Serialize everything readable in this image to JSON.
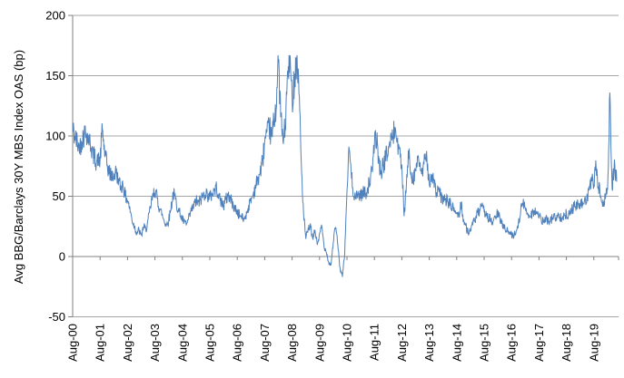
{
  "chart": {
    "y_axis_title": "Avg BBG/Barclays 30Y MBS Index OAS (bp)",
    "line_color": "#4F81BD",
    "gridline_color": "#A6A6A6",
    "axis_color": "#808080",
    "text_color": "#000000",
    "background_color": "#FFFFFF"
  },
  "chart_data": {
    "type": "line",
    "title": "",
    "xlabel": "",
    "ylabel": "Avg BBG/Barclays 30Y MBS Index OAS (bp)",
    "ylim": [
      -50,
      200
    ],
    "y_ticks": [
      200,
      150,
      100,
      50,
      0,
      -50
    ],
    "x_tick_labels": [
      "Aug-00",
      "Aug-01",
      "Aug-02",
      "Aug-03",
      "Aug-04",
      "Aug-05",
      "Aug-06",
      "Aug-07",
      "Aug-08",
      "Aug-09",
      "Aug-10",
      "Aug-11",
      "Aug-12",
      "Aug-13",
      "Aug-14",
      "Aug-15",
      "Aug-16",
      "Aug-17",
      "Aug-18",
      "Aug-19"
    ],
    "grid": "horizontal",
    "legend": "none",
    "series": [
      {
        "name": "Avg BBG/Barclays 30Y MBS Index OAS (bp)",
        "start": "2000-08",
        "frequency": "monthly",
        "values": [
          106,
          98,
          95,
          89,
          97,
          101,
          103,
          97,
          92,
          85,
          80,
          78,
          80,
          106,
          85,
          76,
          70,
          68,
          66,
          70,
          62,
          58,
          60,
          50,
          47,
          40,
          30,
          25,
          20,
          22,
          17,
          25,
          22,
          30,
          40,
          50,
          55,
          48,
          40,
          35,
          30,
          26,
          30,
          40,
          53,
          47,
          40,
          35,
          30,
          28,
          27,
          33,
          38,
          42,
          46,
          44,
          47,
          50,
          53,
          51,
          49,
          52,
          55,
          57,
          50,
          46,
          42,
          47,
          51,
          48,
          44,
          40,
          37,
          34,
          32,
          31,
          36,
          42,
          46,
          52,
          58,
          64,
          70,
          78,
          95,
          100,
          108,
          98,
          112,
          125,
          162,
          118,
          95,
          108,
          150,
          165,
          130,
          148,
          166,
          140,
          78,
          35,
          15,
          22,
          26,
          14,
          22,
          10,
          18,
          25,
          8,
          4,
          -5,
          -7,
          12,
          25,
          10,
          -10,
          -17,
          2,
          55,
          90,
          65,
          52,
          48,
          52,
          50,
          54,
          52,
          57,
          62,
          70,
          95,
          97,
          78,
          70,
          76,
          83,
          88,
          94,
          100,
          106,
          96,
          86,
          75,
          32,
          60,
          84,
          70,
          65,
          72,
          80,
          75,
          70,
          78,
          82,
          62,
          62,
          66,
          50,
          55,
          50,
          46,
          48,
          45,
          44,
          40,
          38,
          36,
          34,
          45,
          30,
          25,
          20,
          22,
          26,
          31,
          35,
          38,
          40,
          38,
          35,
          32,
          30,
          28,
          33,
          36,
          30,
          27,
          25,
          22,
          20,
          18,
          17,
          21,
          28,
          38,
          44,
          40,
          36,
          34,
          36,
          38,
          36,
          33,
          30,
          29,
          30,
          31,
          30,
          32,
          33,
          32,
          34,
          33,
          34,
          35,
          36,
          38,
          40,
          42,
          43,
          42,
          44,
          46,
          50,
          55,
          63,
          60,
          75,
          58,
          50,
          45,
          48,
          55,
          133,
          55,
          78,
          62
        ]
      }
    ]
  }
}
